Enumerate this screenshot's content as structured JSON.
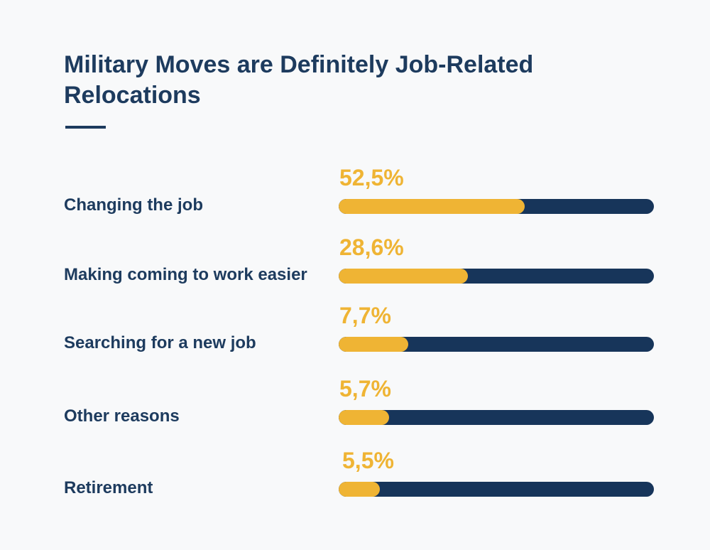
{
  "chart_data": {
    "type": "bar",
    "orientation": "horizontal",
    "title": "Military Moves are Definitely Job-Related Relocations",
    "categories": [
      "Changing the job",
      "Making coming to work easier",
      "Searching for a new job",
      "Other reasons",
      "Retirement"
    ],
    "values": [
      52.5,
      28.6,
      7.7,
      5.7,
      5.5
    ],
    "value_labels": [
      "52,5%",
      "28,6%",
      "7,7%",
      "5,7%",
      "5,5%"
    ],
    "bar_fill_fractions": [
      0.59,
      0.41,
      0.22,
      0.16,
      0.13
    ],
    "colors": {
      "fill": "#efb434",
      "track": "#17355a",
      "text": "#1d3b5e"
    },
    "grid": false,
    "legend": "none"
  }
}
